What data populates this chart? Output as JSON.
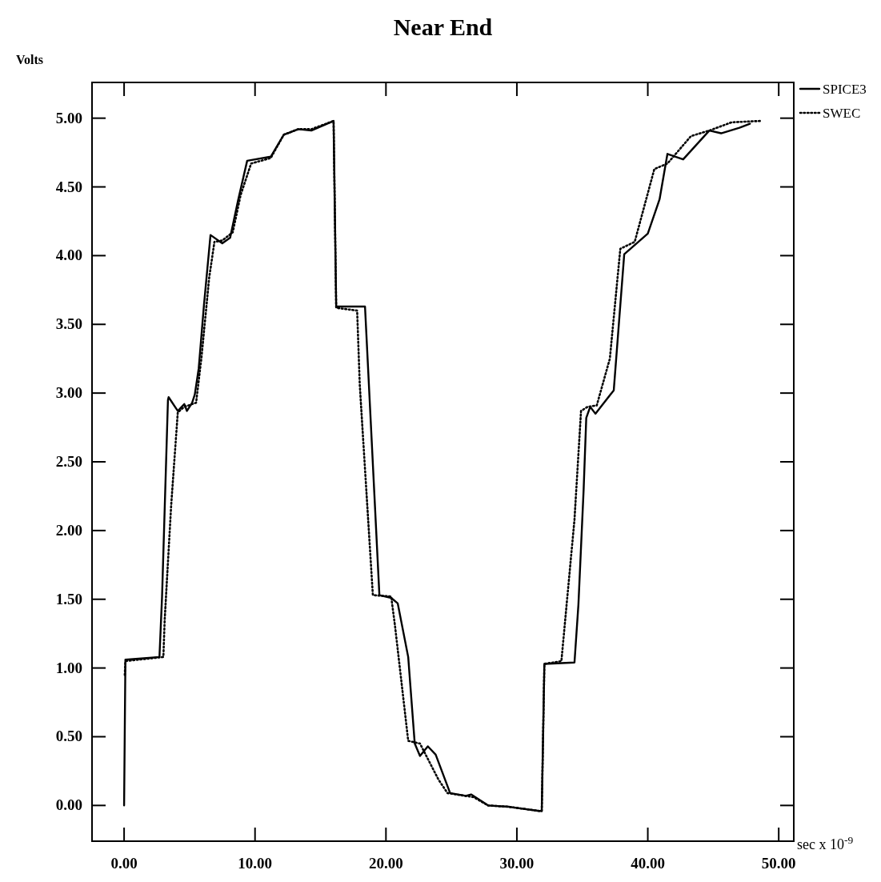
{
  "chart_data": {
    "type": "line",
    "title": "Near End",
    "ylabel": "Volts",
    "xlabel": "sec x 10$^{-9}$",
    "xlim": [
      -2.45,
      51.15
    ],
    "ylim": [
      -0.26,
      5.26
    ],
    "xticks": [
      {
        "value": 0,
        "label": "0.00"
      },
      {
        "value": 10,
        "label": "10.00"
      },
      {
        "value": 20,
        "label": "20.00"
      },
      {
        "value": 30,
        "label": "30.00"
      },
      {
        "value": 40,
        "label": "40.00"
      },
      {
        "value": 50,
        "label": "50.00"
      }
    ],
    "yticks": [
      {
        "value": 0,
        "label": "0.00"
      },
      {
        "value": 0.5,
        "label": "0.50"
      },
      {
        "value": 1,
        "label": "1.00"
      },
      {
        "value": 1.5,
        "label": "1.50"
      },
      {
        "value": 2,
        "label": "2.00"
      },
      {
        "value": 2.5,
        "label": "2.50"
      },
      {
        "value": 3,
        "label": "3.00"
      },
      {
        "value": 3.5,
        "label": "3.50"
      },
      {
        "value": 4,
        "label": "4.00"
      },
      {
        "value": 4.5,
        "label": "4.50"
      },
      {
        "value": 5,
        "label": "5.00"
      }
    ],
    "grid": false,
    "legend": "top right",
    "marker": "none",
    "series": [
      {
        "name": "SPICE3",
        "color": "#000000",
        "line_style": "solid",
        "x": [
          0,
          0.1,
          2.7,
          2.9,
          3.35,
          3.4,
          4.1,
          4.6,
          4.8,
          5.2,
          5.4,
          5.7,
          6.1,
          6.6,
          7.5,
          8.1,
          8.7,
          9.4,
          11.2,
          12.2,
          13.3,
          14.3,
          16.0,
          16.2,
          18.4,
          19.5,
          20.4,
          20.9,
          21.7,
          22.2,
          22.6,
          23.2,
          23.8,
          24.9,
          26.1,
          26.5,
          27.8,
          29.4,
          31.7,
          31.9,
          32.1,
          34.4,
          34.7,
          35.1,
          35.3,
          35.6,
          36.0,
          37.4,
          38.2,
          40.0,
          40.9,
          41.5,
          42.7,
          44.7,
          45.6,
          47.0,
          47.8
        ],
        "values": [
          0,
          1.06,
          1.08,
          1.52,
          2.95,
          2.97,
          2.87,
          2.92,
          2.87,
          2.93,
          2.99,
          3.18,
          3.64,
          4.15,
          4.09,
          4.13,
          4.4,
          4.69,
          4.72,
          4.88,
          4.92,
          4.91,
          4.98,
          3.63,
          3.63,
          1.53,
          1.51,
          1.47,
          1.08,
          0.45,
          0.36,
          0.43,
          0.37,
          0.09,
          0.07,
          0.08,
          0.0,
          -0.01,
          -0.04,
          -0.04,
          1.03,
          1.04,
          1.46,
          2.3,
          2.82,
          2.9,
          2.85,
          3.02,
          4.01,
          4.16,
          4.41,
          4.74,
          4.7,
          4.91,
          4.89,
          4.93,
          4.96
        ]
      },
      {
        "name": "SWEC",
        "color": "#000000",
        "line_style": "dotted",
        "x": [
          0.05,
          0.1,
          3.0,
          3.1,
          3.6,
          4.1,
          4.6,
          5.5,
          5.9,
          6.5,
          6.9,
          7.5,
          8.3,
          8.9,
          9.7,
          11.2,
          12.2,
          13.3,
          14.3,
          16.0,
          16.2,
          17.8,
          18.0,
          19.0,
          20.4,
          20.7,
          21.7,
          22.6,
          24.0,
          24.7,
          26.7,
          27.8,
          29.4,
          31.7,
          31.9,
          32.1,
          33.4,
          34.4,
          34.9,
          35.4,
          36.1,
          37.1,
          37.9,
          39.0,
          40.5,
          41.5,
          43.3,
          44.7,
          46.4,
          48.6
        ],
        "values": [
          0.95,
          1.05,
          1.08,
          1.35,
          2.19,
          2.86,
          2.9,
          2.93,
          3.25,
          3.84,
          4.1,
          4.11,
          4.17,
          4.44,
          4.67,
          4.71,
          4.88,
          4.92,
          4.92,
          4.98,
          3.62,
          3.6,
          3.06,
          1.53,
          1.52,
          1.3,
          0.47,
          0.45,
          0.19,
          0.09,
          0.06,
          0.0,
          -0.01,
          -0.04,
          -0.04,
          1.03,
          1.05,
          2.08,
          2.87,
          2.9,
          2.91,
          3.25,
          4.05,
          4.1,
          4.63,
          4.67,
          4.87,
          4.91,
          4.97,
          4.98
        ]
      }
    ]
  }
}
